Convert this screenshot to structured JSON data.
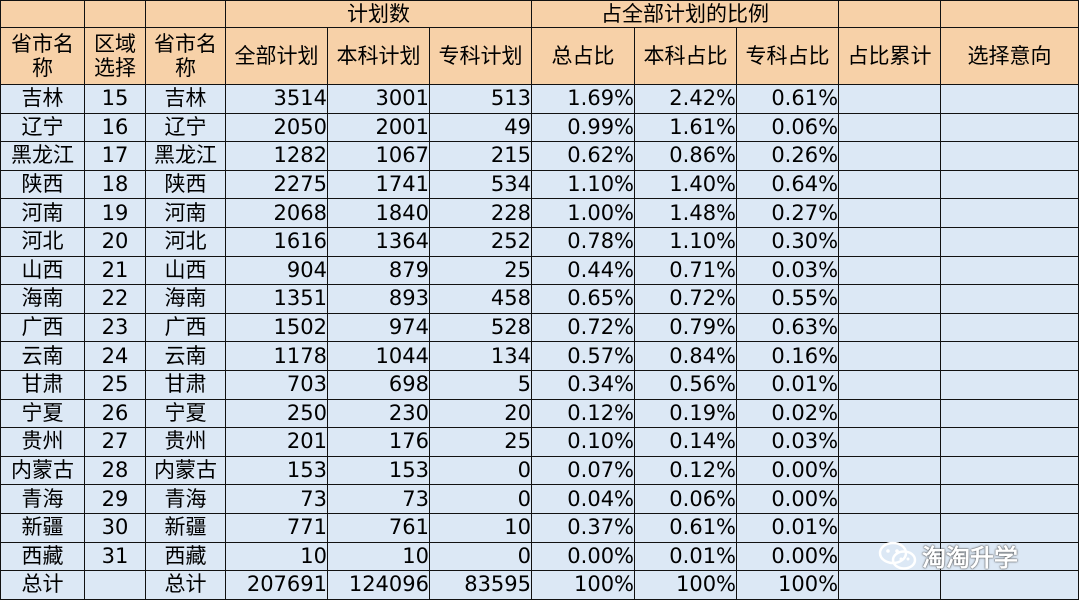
{
  "header_top": {
    "plan_group": "计划数",
    "ratio_group": "占全部计划的比例"
  },
  "header": {
    "province": "省市名称",
    "region_select": "区域选择",
    "province2": "省市名称",
    "total_plan": "全部计划",
    "undergrad_plan": "本科计划",
    "junior_plan": "专科计划",
    "total_ratio": "总占比",
    "undergrad_ratio": "本科占比",
    "junior_ratio": "专科占比",
    "cumulative": "占比累计",
    "intention": "选择意向"
  },
  "rows": [
    {
      "province": "吉林",
      "region": "15",
      "province2": "吉林",
      "total": "3514",
      "undergrad": "3001",
      "junior": "513",
      "total_ratio": "1.69%",
      "undergrad_ratio": "2.42%",
      "junior_ratio": "0.61%",
      "highlight": true
    },
    {
      "province": "辽宁",
      "region": "16",
      "province2": "辽宁",
      "total": "2050",
      "undergrad": "2001",
      "junior": "49",
      "total_ratio": "0.99%",
      "undergrad_ratio": "1.61%",
      "junior_ratio": "0.06%",
      "highlight": true
    },
    {
      "province": "黑龙江",
      "region": "17",
      "province2": "黑龙江",
      "total": "1282",
      "undergrad": "1067",
      "junior": "215",
      "total_ratio": "0.62%",
      "undergrad_ratio": "0.86%",
      "junior_ratio": "0.26%",
      "highlight": false
    },
    {
      "province": "陕西",
      "region": "18",
      "province2": "陕西",
      "total": "2275",
      "undergrad": "1741",
      "junior": "534",
      "total_ratio": "1.10%",
      "undergrad_ratio": "1.40%",
      "junior_ratio": "0.64%",
      "highlight": true
    },
    {
      "province": "河南",
      "region": "19",
      "province2": "河南",
      "total": "2068",
      "undergrad": "1840",
      "junior": "228",
      "total_ratio": "1.00%",
      "undergrad_ratio": "1.48%",
      "junior_ratio": "0.27%",
      "highlight": true
    },
    {
      "province": "河北",
      "region": "20",
      "province2": "河北",
      "total": "1616",
      "undergrad": "1364",
      "junior": "252",
      "total_ratio": "0.78%",
      "undergrad_ratio": "1.10%",
      "junior_ratio": "0.30%",
      "highlight": false
    },
    {
      "province": "山西",
      "region": "21",
      "province2": "山西",
      "total": "904",
      "undergrad": "879",
      "junior": "25",
      "total_ratio": "0.44%",
      "undergrad_ratio": "0.71%",
      "junior_ratio": "0.03%",
      "highlight": false
    },
    {
      "province": "海南",
      "region": "22",
      "province2": "海南",
      "total": "1351",
      "undergrad": "893",
      "junior": "458",
      "total_ratio": "0.65%",
      "undergrad_ratio": "0.72%",
      "junior_ratio": "0.55%",
      "highlight": false
    },
    {
      "province": "广西",
      "region": "23",
      "province2": "广西",
      "total": "1502",
      "undergrad": "974",
      "junior": "528",
      "total_ratio": "0.72%",
      "undergrad_ratio": "0.79%",
      "junior_ratio": "0.63%",
      "highlight": false
    },
    {
      "province": "云南",
      "region": "24",
      "province2": "云南",
      "total": "1178",
      "undergrad": "1044",
      "junior": "134",
      "total_ratio": "0.57%",
      "undergrad_ratio": "0.84%",
      "junior_ratio": "0.16%",
      "highlight": false
    },
    {
      "province": "甘肃",
      "region": "25",
      "province2": "甘肃",
      "total": "703",
      "undergrad": "698",
      "junior": "5",
      "total_ratio": "0.34%",
      "undergrad_ratio": "0.56%",
      "junior_ratio": "0.01%",
      "highlight": false
    },
    {
      "province": "宁夏",
      "region": "26",
      "province2": "宁夏",
      "total": "250",
      "undergrad": "230",
      "junior": "20",
      "total_ratio": "0.12%",
      "undergrad_ratio": "0.19%",
      "junior_ratio": "0.02%",
      "highlight": false
    },
    {
      "province": "贵州",
      "region": "27",
      "province2": "贵州",
      "total": "201",
      "undergrad": "176",
      "junior": "25",
      "total_ratio": "0.10%",
      "undergrad_ratio": "0.14%",
      "junior_ratio": "0.03%",
      "highlight": false
    },
    {
      "province": "内蒙古",
      "region": "28",
      "province2": "内蒙古",
      "total": "153",
      "undergrad": "153",
      "junior": "0",
      "total_ratio": "0.07%",
      "undergrad_ratio": "0.12%",
      "junior_ratio": "0.00%",
      "highlight": false
    },
    {
      "province": "青海",
      "region": "29",
      "province2": "青海",
      "total": "73",
      "undergrad": "73",
      "junior": "0",
      "total_ratio": "0.04%",
      "undergrad_ratio": "0.06%",
      "junior_ratio": "0.00%",
      "highlight": false
    },
    {
      "province": "新疆",
      "region": "30",
      "province2": "新疆",
      "total": "771",
      "undergrad": "761",
      "junior": "10",
      "total_ratio": "0.37%",
      "undergrad_ratio": "0.61%",
      "junior_ratio": "0.01%",
      "highlight": false
    },
    {
      "province": "西藏",
      "region": "31",
      "province2": "西藏",
      "total": "10",
      "undergrad": "10",
      "junior": "0",
      "total_ratio": "0.00%",
      "undergrad_ratio": "0.01%",
      "junior_ratio": "0.00%",
      "highlight": false
    }
  ],
  "totals": {
    "province": "总计",
    "region": "",
    "province2": "总计",
    "total": "207691",
    "undergrad": "124096",
    "junior": "83595",
    "total_ratio": "100%",
    "undergrad_ratio": "100%",
    "junior_ratio": "100%"
  },
  "watermark": {
    "text": "淘淘升学",
    "icon": "wechat-icon"
  },
  "colors": {
    "header_bg": "#f7d1a8",
    "body_bg": "#dce8f5",
    "highlight_text": "#e6151a"
  }
}
